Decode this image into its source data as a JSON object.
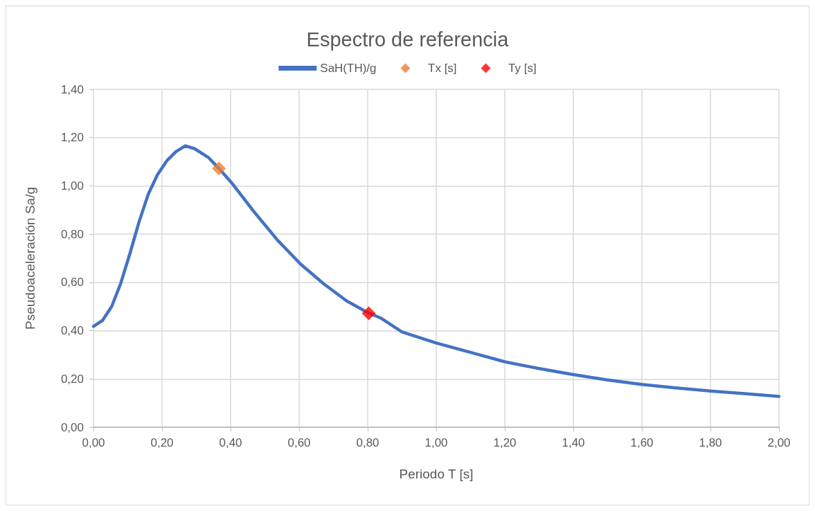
{
  "chart_data": {
    "type": "line",
    "title": "Espectro de referencia",
    "xlabel": "Periodo T [s]",
    "ylabel": "Pseudoaceleración Sa/g",
    "xlim": [
      0,
      2
    ],
    "ylim": [
      0,
      1.4
    ],
    "xticks": [
      {
        "value": 0,
        "label": "0,00"
      },
      {
        "value": 0.2,
        "label": "0,20"
      },
      {
        "value": 0.4,
        "label": "0,40"
      },
      {
        "value": 0.6,
        "label": "0,60"
      },
      {
        "value": 0.8,
        "label": "0,80"
      },
      {
        "value": 1,
        "label": "1,00"
      },
      {
        "value": 1.2,
        "label": "1,20"
      },
      {
        "value": 1.4,
        "label": "1,40"
      },
      {
        "value": 1.6,
        "label": "1,60"
      },
      {
        "value": 1.8,
        "label": "1,80"
      },
      {
        "value": 2,
        "label": "2,00"
      }
    ],
    "yticks": [
      {
        "value": 0,
        "label": "0,00"
      },
      {
        "value": 0.2,
        "label": "0,20"
      },
      {
        "value": 0.4,
        "label": "0,40"
      },
      {
        "value": 0.6,
        "label": "0,60"
      },
      {
        "value": 0.8,
        "label": "0,80"
      },
      {
        "value": 1,
        "label": "1,00"
      },
      {
        "value": 1.2,
        "label": "1,20"
      },
      {
        "value": 1.4,
        "label": "1,40"
      }
    ],
    "grid": true,
    "legend": "top",
    "series": [
      {
        "name": "SaH(TH)/g",
        "type": "line",
        "color": "#4472c4",
        "marker": "none",
        "x": [
          0,
          0.026,
          0.053,
          0.079,
          0.106,
          0.133,
          0.16,
          0.187,
          0.214,
          0.241,
          0.268,
          0.295,
          0.335,
          0.366,
          0.403,
          0.47,
          0.537,
          0.605,
          0.672,
          0.739,
          0.8,
          0.84,
          0.9,
          1.0,
          1.1,
          1.2,
          1.3,
          1.4,
          1.5,
          1.6,
          1.7,
          1.8,
          1.9,
          2.0
        ],
        "values": [
          0.418,
          0.442,
          0.5,
          0.594,
          0.718,
          0.851,
          0.966,
          1.047,
          1.104,
          1.142,
          1.166,
          1.154,
          1.118,
          1.072,
          1.013,
          0.89,
          0.775,
          0.675,
          0.594,
          0.523,
          0.475,
          0.451,
          0.395,
          0.349,
          0.31,
          0.271,
          0.243,
          0.218,
          0.196,
          0.177,
          0.163,
          0.15,
          0.139,
          0.128
        ]
      },
      {
        "name": "Tx [s]",
        "type": "scatter",
        "color": "#ed7d31",
        "marker": "diamond",
        "x": [
          0.366
        ],
        "values": [
          1.072
        ]
      },
      {
        "name": "Ty [s]",
        "type": "scatter",
        "color": "#ff0000",
        "marker": "diamond",
        "x": [
          0.803
        ],
        "values": [
          0.472
        ]
      }
    ]
  }
}
